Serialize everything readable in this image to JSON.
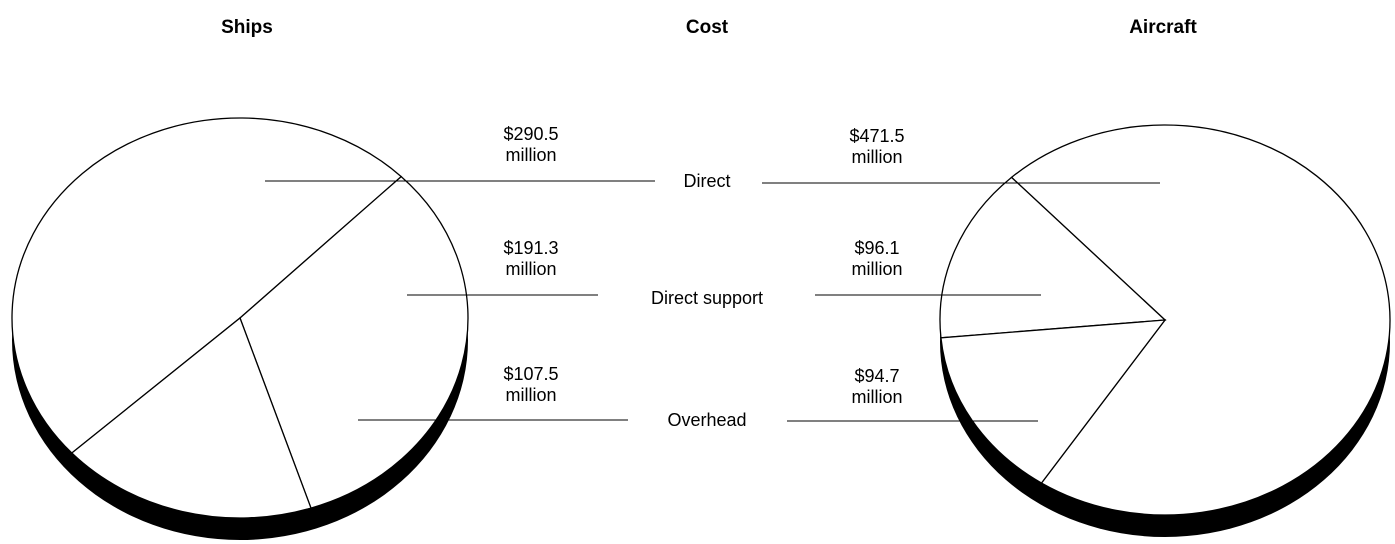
{
  "title": "Cost",
  "categories": [
    "Direct",
    "Direct support",
    "Overhead"
  ],
  "chart_data": [
    {
      "type": "pie",
      "title": "Ships",
      "categories": [
        "Direct",
        "Direct support",
        "Overhead"
      ],
      "values": [
        290.5,
        191.3,
        107.5
      ],
      "value_labels": [
        "$290.5 million",
        "$191.3 million",
        "$107.5 million"
      ]
    },
    {
      "type": "pie",
      "title": "Aircraft",
      "categories": [
        "Direct",
        "Direct support",
        "Overhead"
      ],
      "values": [
        471.5,
        96.1,
        94.7
      ],
      "value_labels": [
        "$471.5 million",
        "$96.1 million",
        "$94.7 million"
      ]
    }
  ]
}
